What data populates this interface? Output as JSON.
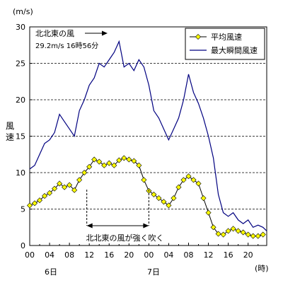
{
  "chart_data": {
    "type": "line",
    "y_unit_label": "(m/s)",
    "ylabel": "風速",
    "ylim": [
      0,
      30
    ],
    "y_ticks": [
      0,
      5,
      10,
      15,
      20,
      25,
      30
    ],
    "x_range_hours": [
      0,
      47.75
    ],
    "x_tick_labels": [
      "00",
      "04",
      "08",
      "12",
      "16",
      "20",
      "00",
      "04",
      "08",
      "12",
      "16",
      "20"
    ],
    "day_labels": [
      "6日",
      "7日"
    ],
    "x_unit_label": "(時)",
    "grid": "dashed horizontal",
    "legend_position": "top-right",
    "series": [
      {
        "name": "平均風速",
        "color": "#ffff00",
        "marker": "diamond",
        "x_hours": [
          0,
          1,
          2,
          3,
          4,
          5,
          6,
          7,
          8,
          9,
          10,
          11,
          12,
          13,
          14,
          15,
          16,
          17,
          18,
          19,
          20,
          21,
          22,
          23,
          24,
          25,
          26,
          27,
          28,
          29,
          30,
          31,
          32,
          33,
          34,
          35,
          36,
          37,
          38,
          39,
          40,
          41,
          42,
          43,
          44,
          45,
          46,
          47
        ],
        "values": [
          5.5,
          5.8,
          6.2,
          6.8,
          7.2,
          7.8,
          8.5,
          8.0,
          8.3,
          7.6,
          9.0,
          10.0,
          10.8,
          11.8,
          11.5,
          11.0,
          11.3,
          11.0,
          11.7,
          12.0,
          11.8,
          11.6,
          11.0,
          9.0,
          7.5,
          7.0,
          6.5,
          6.0,
          5.5,
          6.5,
          8.0,
          9.0,
          9.5,
          9.0,
          8.5,
          6.5,
          4.5,
          2.5,
          1.6,
          1.5,
          2.0,
          2.3,
          2.0,
          1.8,
          1.5,
          1.3,
          1.3,
          1.5
        ]
      },
      {
        "name": "最大瞬間風速",
        "color": "#000080",
        "marker": "none",
        "x_hours": [
          0,
          1,
          2,
          3,
          4,
          5,
          6,
          7,
          8,
          9,
          10,
          11,
          12,
          13,
          14,
          15,
          16,
          17,
          18,
          19,
          20,
          21,
          22,
          23,
          24,
          25,
          26,
          27,
          28,
          29,
          30,
          31,
          32,
          33,
          34,
          35,
          36,
          37,
          38,
          39,
          40,
          41,
          42,
          43,
          44,
          45,
          46,
          47,
          47.75
        ],
        "values": [
          10.5,
          11.0,
          12.5,
          14.0,
          14.5,
          15.5,
          18.0,
          17.0,
          16.0,
          15.0,
          18.5,
          20.0,
          22.0,
          23.0,
          25.0,
          24.5,
          25.5,
          26.5,
          28.0,
          24.5,
          25.0,
          24.0,
          25.5,
          24.5,
          22.0,
          18.5,
          17.5,
          16.0,
          14.5,
          16.0,
          17.5,
          20.0,
          23.5,
          21.0,
          19.5,
          17.5,
          15.0,
          12.0,
          7.0,
          4.5,
          4.0,
          4.5,
          3.5,
          3.0,
          3.5,
          2.5,
          2.8,
          2.5,
          2.0
        ]
      }
    ],
    "annotations": [
      {
        "name": "peak_note_title",
        "text": "北北東の風"
      },
      {
        "name": "peak_note_value",
        "text": "29.2m/s 16時56分"
      },
      {
        "name": "range_note",
        "text": "北北東の風が強く吹く",
        "from_hour": 11.5,
        "to_hour": 24
      }
    ]
  }
}
